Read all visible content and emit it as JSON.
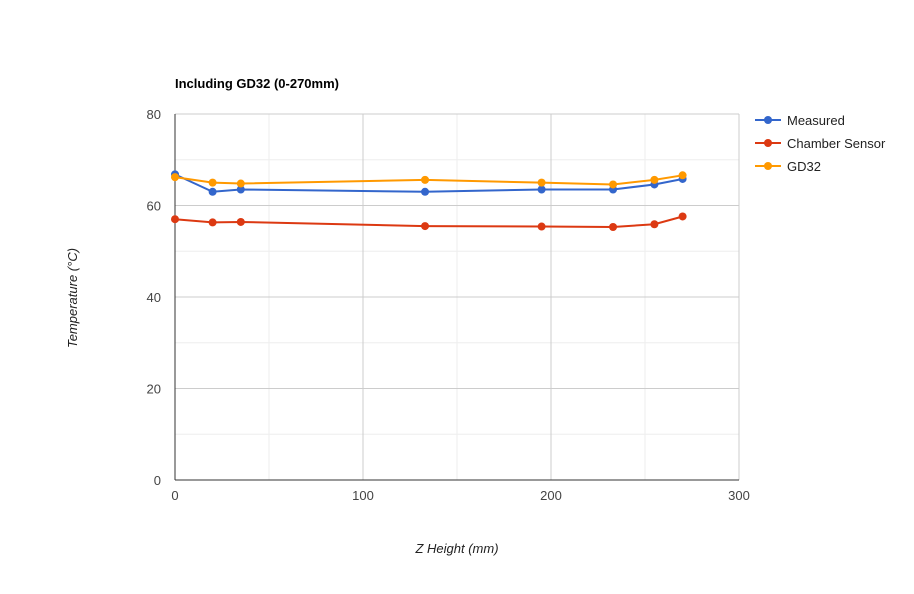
{
  "chart_data": {
    "type": "line",
    "title": "Including GD32 (0-270mm)",
    "xlabel": "Z Height (mm)",
    "ylabel": "Temperature (°C)",
    "xlim": [
      0,
      300
    ],
    "ylim": [
      0,
      80
    ],
    "x_ticks": [
      0,
      100,
      200,
      300
    ],
    "y_ticks": [
      0,
      20,
      40,
      60,
      80
    ],
    "grid": true,
    "legend_position": "right",
    "series": [
      {
        "name": "Measured",
        "color": "#3366cc",
        "x": [
          0,
          20,
          35,
          133,
          195,
          233,
          255,
          270
        ],
        "values": [
          66.8,
          63.0,
          63.5,
          63.0,
          63.5,
          63.5,
          64.6,
          65.8
        ]
      },
      {
        "name": "Chamber Sensor",
        "color": "#dc3912",
        "x": [
          0,
          20,
          35,
          133,
          195,
          233,
          255,
          270
        ],
        "values": [
          57.0,
          56.3,
          56.4,
          55.5,
          55.4,
          55.3,
          55.9,
          57.6
        ]
      },
      {
        "name": "GD32",
        "color": "#ff9900",
        "x": [
          0,
          20,
          35,
          133,
          195,
          233,
          255,
          270
        ],
        "values": [
          66.2,
          65.0,
          64.8,
          65.6,
          65.0,
          64.6,
          65.6,
          66.6
        ]
      }
    ]
  }
}
